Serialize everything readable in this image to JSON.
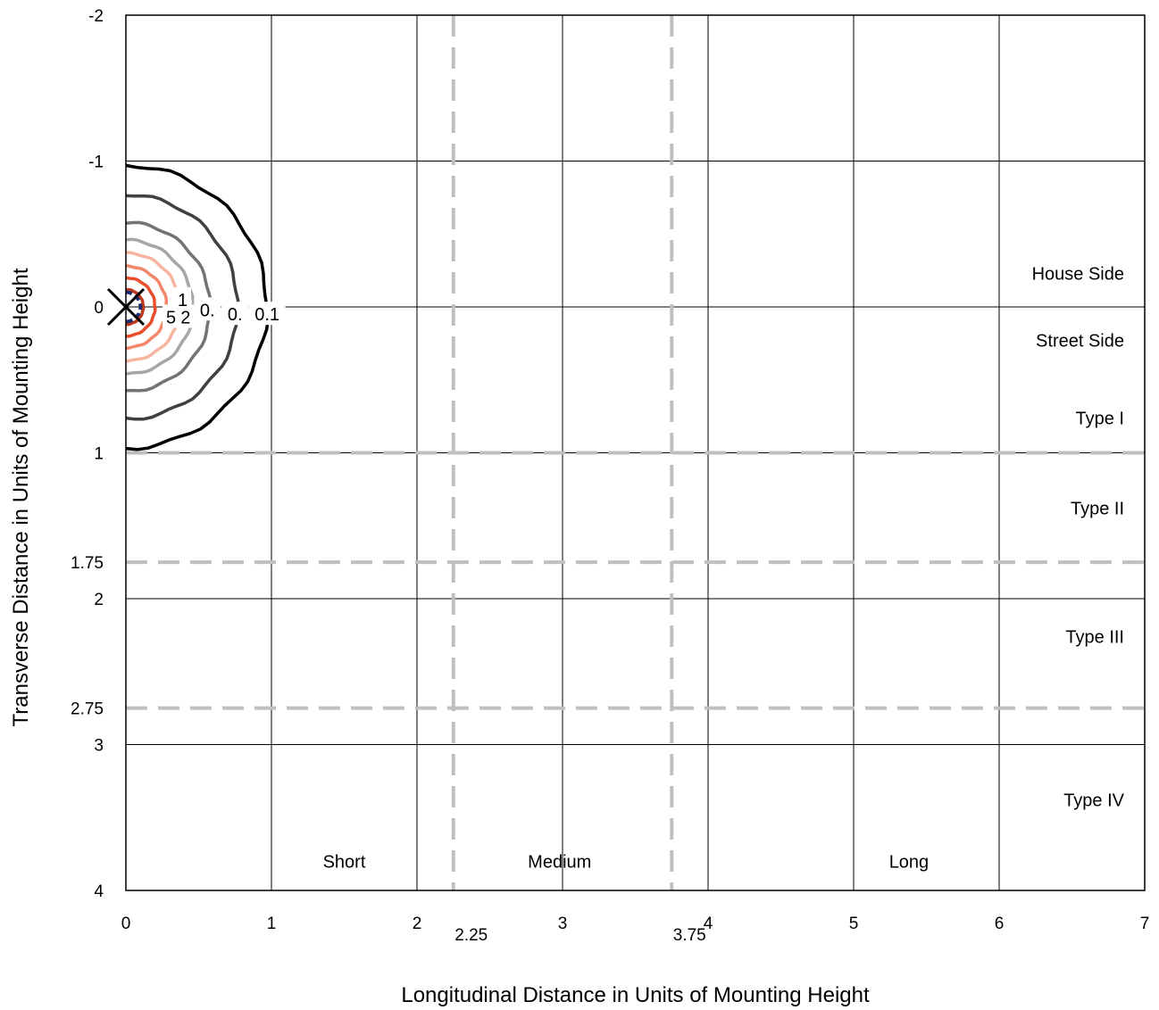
{
  "chart_data": {
    "type": "line",
    "title": "",
    "xlabel": "Longitudinal Distance in Units of Mounting Height",
    "ylabel": "Transverse Distance in Units of Mounting Height",
    "xlim": [
      0,
      7
    ],
    "ylim": [
      -2,
      4
    ],
    "y_inverted": true,
    "grid": true,
    "x_ticks": [
      "0",
      "1",
      "2",
      "3",
      "4",
      "5",
      "6",
      "7"
    ],
    "y_ticks": [
      "-2",
      "-1",
      "0",
      "1",
      "2",
      "3",
      "4"
    ],
    "reference_lines": {
      "vertical": [
        {
          "x": 2.25,
          "label": "2.25"
        },
        {
          "x": 3.75,
          "label": "3.75"
        }
      ],
      "horizontal": [
        {
          "y": 1,
          "label": ""
        },
        {
          "y": 1.75,
          "label": "1.75"
        },
        {
          "y": 2.75,
          "label": "2.75"
        }
      ],
      "color": "#bfbfbf"
    },
    "region_labels": [
      {
        "text": "House Side",
        "x": 6.9,
        "y": -0.23
      },
      {
        "text": "Street Side",
        "x": 6.9,
        "y": 0.23
      },
      {
        "text": "Type I",
        "x": 6.9,
        "y": 0.76
      },
      {
        "text": "Type II",
        "x": 6.9,
        "y": 1.38
      },
      {
        "text": "Type III",
        "x": 6.9,
        "y": 2.26
      },
      {
        "text": "Type IV",
        "x": 6.9,
        "y": 3.38
      },
      {
        "text": "Short",
        "x": 1.5,
        "y": 3.8
      },
      {
        "text": "Medium",
        "x": 2.98,
        "y": 3.8
      },
      {
        "text": "Long",
        "x": 5.38,
        "y": 3.8
      }
    ],
    "luminaire_marker": {
      "x": 0,
      "y": 0,
      "symbol": "×"
    },
    "contours": [
      {
        "level": "0.1",
        "radius": 0.97,
        "color": "#000000"
      },
      {
        "level": "0.",
        "radius": 0.77,
        "color": "#404040"
      },
      {
        "level": "0.",
        "radius": 0.58,
        "color": "#737373"
      },
      {
        "level": "2",
        "radius": 0.46,
        "color": "#a6a6a6"
      },
      {
        "level": "5",
        "radius": 0.37,
        "color": "#f7b5a0"
      },
      {
        "level": "",
        "radius": 0.28,
        "color": "#f4866a"
      },
      {
        "level": "1",
        "radius": 0.2,
        "color": "#ea4d2a"
      },
      {
        "level": "",
        "radius": 0.12,
        "color": "#c0391b"
      },
      {
        "level": "",
        "radius": 0.1,
        "color": "#1f2f6e",
        "dashed": true
      }
    ],
    "contour_labels": [
      {
        "text": "5",
        "x": 0.31,
        "y": 0.07
      },
      {
        "text": "2",
        "x": 0.41,
        "y": 0.07
      },
      {
        "text": "1",
        "x": 0.39,
        "y": -0.05
      },
      {
        "text": "0.",
        "x": 0.56,
        "y": 0.02
      },
      {
        "text": "0.",
        "x": 0.75,
        "y": 0.05
      },
      {
        "text": "0.1",
        "x": 0.97,
        "y": 0.05
      }
    ]
  }
}
